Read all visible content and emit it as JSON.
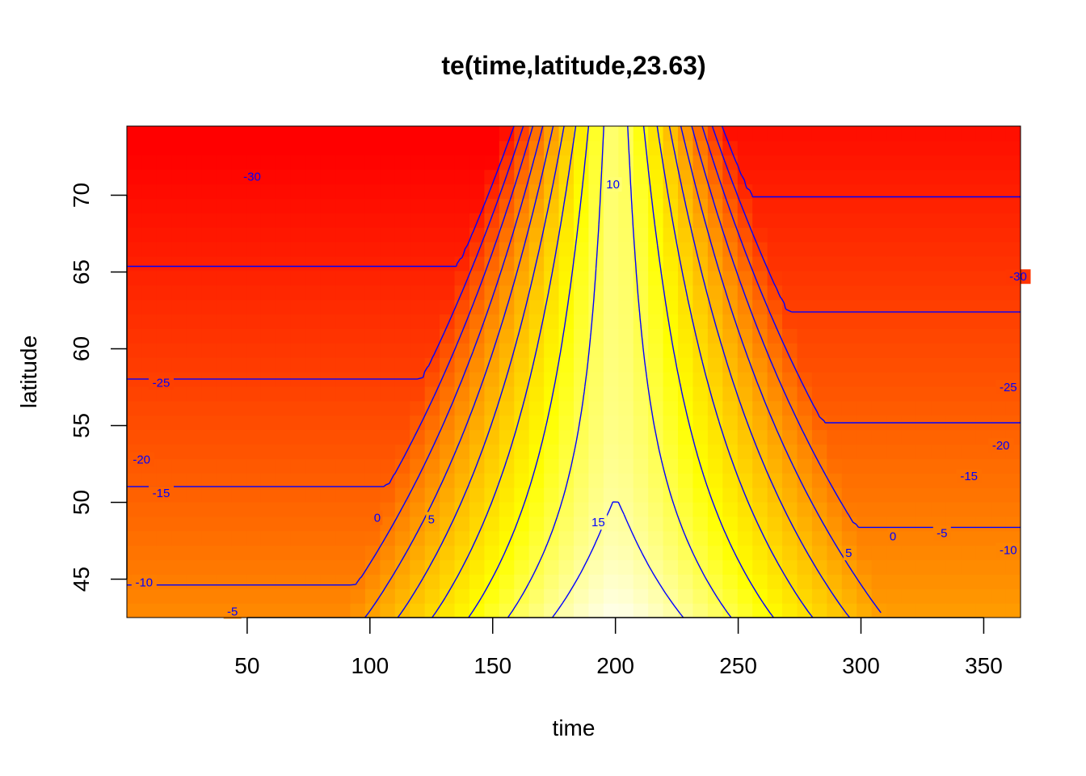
{
  "chart_data": {
    "type": "heatmap",
    "title": "te(time,latitude,23.63)",
    "xlabel": "time",
    "ylabel": "latitude",
    "xlim": [
      1,
      365
    ],
    "ylim": [
      42.5,
      74.5
    ],
    "x_ticks": [
      50,
      100,
      150,
      200,
      250,
      300,
      350
    ],
    "y_ticks": [
      45,
      50,
      55,
      60,
      65,
      70
    ],
    "colormap": "heat (red → orange → yellow → white)",
    "contour_color": "#0000ff",
    "contour_levels": [
      -30,
      -25,
      -20,
      -15,
      -10,
      -5,
      0,
      5,
      10,
      15
    ],
    "contour_labels": [
      {
        "text": "-30",
        "time": 52,
        "latitude": 71.2
      },
      {
        "text": "-25",
        "time": 15,
        "latitude": 57.8
      },
      {
        "text": "-20",
        "time": 7,
        "latitude": 52.8
      },
      {
        "text": "-15",
        "time": 15,
        "latitude": 50.6
      },
      {
        "text": "-10",
        "time": 8,
        "latitude": 44.8
      },
      {
        "text": "-5",
        "time": 44,
        "latitude": 42.9
      },
      {
        "text": "0",
        "time": 103,
        "latitude": 49.0
      },
      {
        "text": "5",
        "time": 125,
        "latitude": 48.9
      },
      {
        "text": "10",
        "time": 199,
        "latitude": 70.7
      },
      {
        "text": "15",
        "time": 193,
        "latitude": 48.7
      },
      {
        "text": "5",
        "time": 295,
        "latitude": 46.7
      },
      {
        "text": "0",
        "time": 313,
        "latitude": 47.8
      },
      {
        "text": "-5",
        "time": 333,
        "latitude": 48.0
      },
      {
        "text": "-10",
        "time": 360,
        "latitude": 46.9
      },
      {
        "text": "-15",
        "time": 344,
        "latitude": 51.7
      },
      {
        "text": "-20",
        "time": 357,
        "latitude": 53.7
      },
      {
        "text": "-25",
        "time": 360,
        "latitude": 57.5
      },
      {
        "text": "-30",
        "time": 364,
        "latitude": 64.7
      }
    ]
  }
}
